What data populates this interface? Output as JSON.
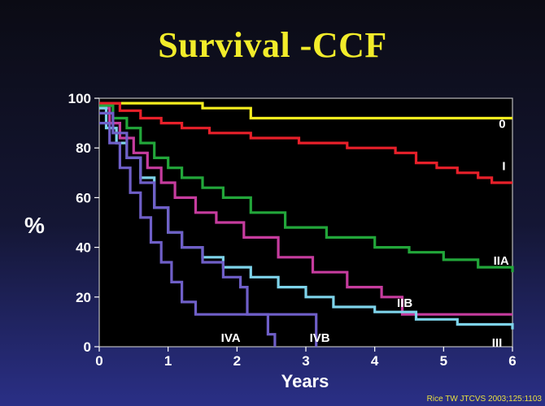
{
  "slide": {
    "title": "Survival -CCF",
    "citation": "Rice TW JTCVS 2003;125:1103"
  },
  "chart_data": {
    "type": "line",
    "step": true,
    "title": "Survival -CCF",
    "xlabel": "Years",
    "ylabel": "%",
    "xlim": [
      0,
      6
    ],
    "ylim": [
      0,
      100
    ],
    "xticks": [
      0,
      1,
      2,
      3,
      4,
      5,
      6
    ],
    "yticks": [
      0,
      20,
      40,
      60,
      80,
      100
    ],
    "grid": false,
    "series": [
      {
        "name": "0",
        "color": "#f5ee1f",
        "x": [
          0,
          1.5,
          2.2,
          6
        ],
        "y": [
          98,
          96,
          92,
          92
        ],
        "label_at": [
          5.9,
          88
        ]
      },
      {
        "name": "I",
        "color": "#e8202a",
        "x": [
          0,
          0.3,
          0.6,
          0.9,
          1.2,
          1.6,
          2.2,
          2.9,
          3.6,
          4.3,
          4.6,
          4.9,
          5.2,
          5.5,
          5.7,
          6
        ],
        "y": [
          98,
          95,
          92,
          90,
          88,
          86,
          84,
          82,
          80,
          78,
          74,
          72,
          70,
          68,
          66,
          66
        ],
        "label_at": [
          5.9,
          71
        ]
      },
      {
        "name": "IIA",
        "color": "#22a63a",
        "x": [
          0,
          0.2,
          0.4,
          0.6,
          0.8,
          1,
          1.2,
          1.5,
          1.8,
          2.2,
          2.7,
          3.3,
          4,
          4.5,
          5,
          5.5,
          6
        ],
        "y": [
          97,
          92,
          88,
          82,
          76,
          72,
          68,
          64,
          60,
          54,
          48,
          44,
          40,
          38,
          35,
          32,
          30
        ],
        "label_at": [
          5.95,
          33
        ]
      },
      {
        "name": "IIB",
        "color": "#c63c9e",
        "x": [
          0,
          0.15,
          0.3,
          0.5,
          0.7,
          0.9,
          1.1,
          1.4,
          1.7,
          2.1,
          2.6,
          3.1,
          3.6,
          4.1,
          4.4,
          6
        ],
        "y": [
          96,
          90,
          84,
          78,
          72,
          66,
          60,
          54,
          50,
          44,
          36,
          30,
          24,
          20,
          13,
          13
        ],
        "label_at": [
          4.55,
          16
        ]
      },
      {
        "name": "III",
        "color": "#7ed3ea",
        "x": [
          0,
          0.1,
          0.25,
          0.4,
          0.6,
          0.8,
          1,
          1.2,
          1.5,
          1.8,
          2.2,
          2.6,
          3,
          3.4,
          4,
          4.6,
          5.2,
          6
        ],
        "y": [
          96,
          88,
          82,
          76,
          68,
          56,
          46,
          40,
          36,
          32,
          28,
          24,
          20,
          16,
          14,
          11,
          9,
          7
        ],
        "label_at": [
          5.85,
          0
        ]
      },
      {
        "name": "IVA",
        "color": "#6f5fc8",
        "x": [
          0,
          0.15,
          0.3,
          0.45,
          0.6,
          0.75,
          0.9,
          1.05,
          1.2,
          1.4,
          1.7,
          2,
          2.3,
          2.45,
          2.55
        ],
        "y": [
          90,
          82,
          72,
          62,
          52,
          42,
          34,
          26,
          18,
          13,
          13,
          13,
          13,
          5,
          0
        ],
        "label_at": [
          2.05,
          2
        ]
      },
      {
        "name": "IVB",
        "color": "#6f5fc8",
        "x": [
          0,
          0.2,
          0.4,
          0.6,
          0.8,
          1,
          1.2,
          1.5,
          1.8,
          2.05,
          2.15,
          2.3,
          2.6,
          2.9,
          3.1,
          3.15
        ],
        "y": [
          94,
          86,
          76,
          66,
          56,
          46,
          40,
          34,
          28,
          24,
          13,
          13,
          13,
          13,
          13,
          0
        ],
        "label_at": [
          3.35,
          2
        ]
      }
    ]
  }
}
